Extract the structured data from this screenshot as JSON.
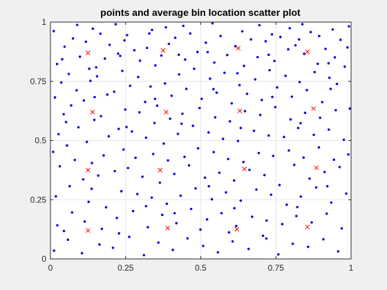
{
  "chart_data": {
    "type": "scatter",
    "title": "points and average bin location scatter plot",
    "xlabel": "",
    "ylabel": "",
    "xlim": [
      0,
      1
    ],
    "ylim": [
      0,
      1
    ],
    "x_ticks": [
      "0",
      "0.25",
      "0.5",
      "0.75",
      "1"
    ],
    "y_ticks": [
      "0",
      "0.25",
      "0.5",
      "0.75",
      "1"
    ],
    "grid": true,
    "series": [
      {
        "marker": "dot",
        "color": "#1010e0",
        "points": [
          [
            0.012,
            0.035
          ],
          [
            0.023,
            0.142
          ],
          [
            0.018,
            0.264
          ],
          [
            0.031,
            0.391
          ],
          [
            0.009,
            0.452
          ],
          [
            0.027,
            0.527
          ],
          [
            0.044,
            0.611
          ],
          [
            0.015,
            0.682
          ],
          [
            0.036,
            0.745
          ],
          [
            0.022,
            0.823
          ],
          [
            0.047,
            0.896
          ],
          [
            0.011,
            0.962
          ],
          [
            0.058,
            0.081
          ],
          [
            0.072,
            0.196
          ],
          [
            0.064,
            0.307
          ],
          [
            0.081,
            0.418
          ],
          [
            0.055,
            0.479
          ],
          [
            0.093,
            0.556
          ],
          [
            0.069,
            0.648
          ],
          [
            0.087,
            0.712
          ],
          [
            0.061,
            0.781
          ],
          [
            0.098,
            0.854
          ],
          [
            0.075,
            0.931
          ],
          [
            0.089,
            0.988
          ],
          [
            0.105,
            0.024
          ],
          [
            0.114,
            0.158
          ],
          [
            0.127,
            0.241
          ],
          [
            0.109,
            0.336
          ],
          [
            0.138,
            0.405
          ],
          [
            0.121,
            0.494
          ],
          [
            0.146,
            0.587
          ],
          [
            0.111,
            0.669
          ],
          [
            0.133,
            0.752
          ],
          [
            0.152,
            0.809
          ],
          [
            0.118,
            0.917
          ],
          [
            0.141,
            0.972
          ],
          [
            0.163,
            0.061
          ],
          [
            0.171,
            0.127
          ],
          [
            0.185,
            0.218
          ],
          [
            0.159,
            0.352
          ],
          [
            0.177,
            0.437
          ],
          [
            0.194,
            0.518
          ],
          [
            0.168,
            0.603
          ],
          [
            0.189,
            0.694
          ],
          [
            0.155,
            0.771
          ],
          [
            0.181,
            0.846
          ],
          [
            0.197,
            0.904
          ],
          [
            0.166,
            0.951
          ],
          [
            0.208,
            0.047
          ],
          [
            0.221,
            0.173
          ],
          [
            0.236,
            0.286
          ],
          [
            0.214,
            0.371
          ],
          [
            0.243,
            0.462
          ],
          [
            0.227,
            0.549
          ],
          [
            0.249,
            0.631
          ],
          [
            0.212,
            0.706
          ],
          [
            0.239,
            0.794
          ],
          [
            0.225,
            0.867
          ],
          [
            0.246,
            0.923
          ],
          [
            0.217,
            0.991
          ],
          [
            0.262,
            0.093
          ],
          [
            0.275,
            0.202
          ],
          [
            0.289,
            0.274
          ],
          [
            0.258,
            0.384
          ],
          [
            0.283,
            0.427
          ],
          [
            0.271,
            0.538
          ],
          [
            0.296,
            0.619
          ],
          [
            0.265,
            0.731
          ],
          [
            0.292,
            0.768
          ],
          [
            0.279,
            0.881
          ],
          [
            0.255,
            0.945
          ],
          [
            0.298,
            0.837
          ],
          [
            0.311,
            0.016
          ],
          [
            0.324,
            0.134
          ],
          [
            0.337,
            0.259
          ],
          [
            0.306,
            0.347
          ],
          [
            0.342,
            0.443
          ],
          [
            0.318,
            0.512
          ],
          [
            0.346,
            0.574
          ],
          [
            0.315,
            0.663
          ],
          [
            0.333,
            0.728
          ],
          [
            0.349,
            0.817
          ],
          [
            0.321,
            0.891
          ],
          [
            0.338,
            0.967
          ],
          [
            0.359,
            0.069
          ],
          [
            0.372,
            0.186
          ],
          [
            0.387,
            0.233
          ],
          [
            0.364,
            0.322
          ],
          [
            0.391,
            0.416
          ],
          [
            0.377,
            0.487
          ],
          [
            0.398,
            0.592
          ],
          [
            0.355,
            0.647
          ],
          [
            0.381,
            0.741
          ],
          [
            0.369,
            0.859
          ],
          [
            0.394,
            0.908
          ],
          [
            0.384,
            0.978
          ],
          [
            0.407,
            0.038
          ],
          [
            0.419,
            0.151
          ],
          [
            0.433,
            0.267
          ],
          [
            0.412,
            0.359
          ],
          [
            0.446,
            0.431
          ],
          [
            0.424,
            0.528
          ],
          [
            0.439,
            0.613
          ],
          [
            0.403,
            0.689
          ],
          [
            0.428,
            0.779
          ],
          [
            0.448,
            0.842
          ],
          [
            0.415,
            0.934
          ],
          [
            0.442,
            0.984
          ],
          [
            0.456,
            0.087
          ],
          [
            0.468,
            0.211
          ],
          [
            0.483,
            0.298
          ],
          [
            0.461,
            0.395
          ],
          [
            0.491,
            0.467
          ],
          [
            0.474,
            0.562
          ],
          [
            0.496,
            0.637
          ],
          [
            0.452,
            0.718
          ],
          [
            0.478,
            0.803
          ],
          [
            0.489,
            0.874
          ],
          [
            0.465,
            0.952
          ],
          [
            0.499,
            0.124
          ],
          [
            0.508,
            0.055
          ],
          [
            0.521,
            0.167
          ],
          [
            0.537,
            0.252
          ],
          [
            0.514,
            0.343
          ],
          [
            0.543,
            0.451
          ],
          [
            0.526,
            0.534
          ],
          [
            0.548,
            0.598
          ],
          [
            0.503,
            0.676
          ],
          [
            0.531,
            0.761
          ],
          [
            0.545,
            0.829
          ],
          [
            0.517,
            0.913
          ],
          [
            0.539,
            0.995
          ],
          [
            0.557,
            0.028
          ],
          [
            0.569,
            0.193
          ],
          [
            0.584,
            0.281
          ],
          [
            0.562,
            0.364
          ],
          [
            0.591,
            0.422
          ],
          [
            0.574,
            0.507
          ],
          [
            0.597,
            0.581
          ],
          [
            0.553,
            0.702
          ],
          [
            0.579,
            0.786
          ],
          [
            0.588,
            0.861
          ],
          [
            0.566,
            0.941
          ],
          [
            0.594,
            0.112
          ],
          [
            0.606,
            0.074
          ],
          [
            0.618,
            0.139
          ],
          [
            0.633,
            0.246
          ],
          [
            0.611,
            0.331
          ],
          [
            0.642,
            0.409
          ],
          [
            0.624,
            0.498
          ],
          [
            0.647,
            0.624
          ],
          [
            0.603,
            0.657
          ],
          [
            0.629,
            0.734
          ],
          [
            0.644,
            0.815
          ],
          [
            0.615,
            0.898
          ],
          [
            0.638,
            0.961
          ],
          [
            0.659,
            0.042
          ],
          [
            0.671,
            0.178
          ],
          [
            0.685,
            0.293
          ],
          [
            0.662,
            0.376
          ],
          [
            0.693,
            0.447
          ],
          [
            0.677,
            0.541
          ],
          [
            0.698,
            0.608
          ],
          [
            0.654,
            0.697
          ],
          [
            0.681,
            0.758
          ],
          [
            0.689,
            0.852
          ],
          [
            0.667,
            0.927
          ],
          [
            0.695,
            0.987
          ],
          [
            0.707,
            0.098
          ],
          [
            0.719,
            0.162
          ],
          [
            0.734,
            0.271
          ],
          [
            0.712,
            0.354
          ],
          [
            0.741,
            0.435
          ],
          [
            0.726,
            0.521
          ],
          [
            0.748,
            0.641
          ],
          [
            0.703,
            0.671
          ],
          [
            0.729,
            0.797
          ],
          [
            0.745,
            0.836
          ],
          [
            0.716,
            0.919
          ],
          [
            0.737,
            0.948
          ],
          [
            0.758,
            0.019
          ],
          [
            0.771,
            0.147
          ],
          [
            0.786,
            0.229
          ],
          [
            0.762,
            0.312
          ],
          [
            0.793,
            0.458
          ],
          [
            0.777,
            0.515
          ],
          [
            0.799,
            0.589
          ],
          [
            0.754,
            0.724
          ],
          [
            0.782,
            0.773
          ],
          [
            0.791,
            0.885
          ],
          [
            0.765,
            0.937
          ],
          [
            0.796,
            0.974
          ],
          [
            0.806,
            0.064
          ],
          [
            0.818,
            0.181
          ],
          [
            0.833,
            0.263
          ],
          [
            0.811,
            0.397
          ],
          [
            0.842,
            0.428
          ],
          [
            0.824,
            0.553
          ],
          [
            0.847,
            0.617
          ],
          [
            0.803,
            0.685
          ],
          [
            0.829,
            0.747
          ],
          [
            0.844,
            0.866
          ],
          [
            0.815,
            0.902
          ],
          [
            0.838,
            0.991
          ],
          [
            0.857,
            0.051
          ],
          [
            0.869,
            0.154
          ],
          [
            0.884,
            0.302
          ],
          [
            0.862,
            0.339
          ],
          [
            0.893,
            0.471
          ],
          [
            0.876,
            0.524
          ],
          [
            0.897,
            0.596
          ],
          [
            0.853,
            0.713
          ],
          [
            0.879,
            0.789
          ],
          [
            0.889,
            0.824
          ],
          [
            0.866,
            0.958
          ],
          [
            0.894,
            0.941
          ],
          [
            0.908,
            0.083
          ],
          [
            0.919,
            0.191
          ],
          [
            0.934,
            0.238
          ],
          [
            0.912,
            0.367
          ],
          [
            0.943,
            0.419
          ],
          [
            0.926,
            0.546
          ],
          [
            0.949,
            0.628
          ],
          [
            0.904,
            0.662
          ],
          [
            0.928,
            0.765
          ],
          [
            0.946,
            0.851
          ],
          [
            0.915,
            0.887
          ],
          [
            0.939,
            0.969
          ],
          [
            0.957,
            0.032
          ],
          [
            0.969,
            0.129
          ],
          [
            0.984,
            0.276
          ],
          [
            0.962,
            0.388
          ],
          [
            0.991,
            0.441
          ],
          [
            0.976,
            0.503
          ],
          [
            0.996,
            0.635
          ],
          [
            0.953,
            0.739
          ],
          [
            0.979,
            0.812
          ],
          [
            0.988,
            0.893
          ],
          [
            0.965,
            0.925
          ],
          [
            0.993,
            0.982
          ],
          [
            0.045,
            0.118
          ],
          [
            0.137,
            0.296
          ],
          [
            0.228,
            0.108
          ],
          [
            0.318,
            0.223
          ],
          [
            0.413,
            0.193
          ],
          [
            0.527,
            0.307
          ],
          [
            0.612,
            0.214
          ],
          [
            0.718,
            0.086
          ],
          [
            0.821,
            0.219
          ],
          [
            0.921,
            0.307
          ],
          [
            0.052,
            0.578
          ],
          [
            0.147,
            0.683
          ],
          [
            0.253,
            0.557
          ],
          [
            0.348,
            0.676
          ],
          [
            0.436,
            0.571
          ],
          [
            0.542,
            0.717
          ],
          [
            0.633,
            0.553
          ],
          [
            0.738,
            0.684
          ],
          [
            0.832,
            0.573
          ],
          [
            0.932,
            0.718
          ],
          [
            0.039,
            0.843
          ],
          [
            0.129,
            0.803
          ],
          [
            0.232,
            0.857
          ],
          [
            0.329,
            0.952
          ],
          [
            0.427,
            0.862
          ],
          [
            0.523,
            0.873
          ],
          [
            0.622,
            0.784
          ],
          [
            0.726,
            0.862
          ],
          [
            0.827,
            0.927
          ],
          [
            0.925,
            0.826
          ]
        ]
      },
      {
        "marker": "x",
        "color": "#ff0000",
        "points": [
          [
            0.125,
            0.12
          ],
          [
            0.39,
            0.13
          ],
          [
            0.62,
            0.125
          ],
          [
            0.855,
            0.135
          ],
          [
            0.125,
            0.375
          ],
          [
            0.365,
            0.375
          ],
          [
            0.645,
            0.38
          ],
          [
            0.885,
            0.385
          ],
          [
            0.14,
            0.62
          ],
          [
            0.385,
            0.62
          ],
          [
            0.63,
            0.625
          ],
          [
            0.875,
            0.635
          ],
          [
            0.125,
            0.87
          ],
          [
            0.375,
            0.88
          ],
          [
            0.625,
            0.89
          ],
          [
            0.855,
            0.875
          ]
        ]
      }
    ]
  }
}
